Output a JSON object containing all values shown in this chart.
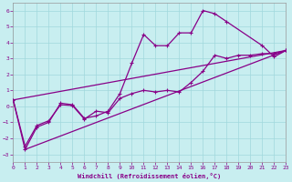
{
  "xlabel": "Windchill (Refroidissement éolien,°C)",
  "xlim": [
    0,
    23
  ],
  "ylim": [
    -3.5,
    6.5
  ],
  "yticks": [
    -3,
    -2,
    -1,
    0,
    1,
    2,
    3,
    4,
    5,
    6
  ],
  "xticks": [
    0,
    1,
    2,
    3,
    4,
    5,
    6,
    7,
    8,
    9,
    10,
    11,
    12,
    13,
    14,
    15,
    16,
    17,
    18,
    19,
    20,
    21,
    22,
    23
  ],
  "bg_color": "#c8eef0",
  "line_color": "#880088",
  "grid_color": "#a0d8dc",
  "line1_x": [
    0,
    1,
    2,
    3,
    4,
    5,
    6,
    7,
    8,
    9,
    10,
    11,
    12,
    13,
    14,
    15,
    16,
    17,
    18,
    21,
    22,
    23
  ],
  "line1_y": [
    0.4,
    -2.7,
    -1.3,
    -1.0,
    0.2,
    0.1,
    -0.75,
    -0.6,
    -0.3,
    0.8,
    2.7,
    4.5,
    3.8,
    3.8,
    4.6,
    4.6,
    6.0,
    5.8,
    5.3,
    3.8,
    3.1,
    3.5
  ],
  "line2_x": [
    0,
    1,
    2,
    3,
    4,
    5,
    6,
    7,
    8,
    9,
    10,
    11,
    12,
    13,
    14,
    15,
    16,
    17,
    18,
    19,
    20,
    21,
    22,
    23
  ],
  "line2_y": [
    0.4,
    -2.5,
    -1.2,
    -0.9,
    0.1,
    0.05,
    -0.8,
    -0.3,
    -0.4,
    0.5,
    0.8,
    1.0,
    0.9,
    1.0,
    0.9,
    1.5,
    2.2,
    3.2,
    3.0,
    3.2,
    3.2,
    3.3,
    3.3,
    3.5
  ],
  "line3_x": [
    0,
    23
  ],
  "line3_y": [
    0.4,
    3.5
  ],
  "line4_x": [
    1,
    23
  ],
  "line4_y": [
    -2.7,
    3.5
  ]
}
